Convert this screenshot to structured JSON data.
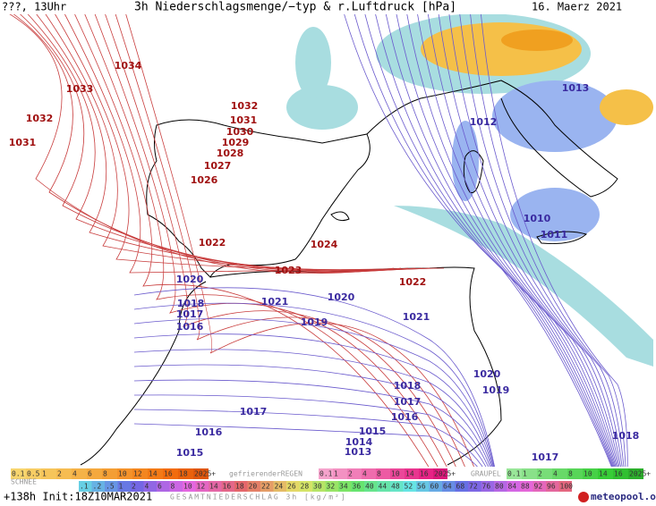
{
  "header": {
    "left": "???, 13Uhr",
    "title": "3h Niederschlagsmenge/−typ & r.Luftdruck [hPa]",
    "date": "16. Maerz 2021"
  },
  "isobar_labels": [
    "1034",
    "1033",
    "1032",
    "1031",
    "1032",
    "1031",
    "1030",
    "1029",
    "1028",
    "1027",
    "1026",
    "1022",
    "1024",
    "1023",
    "1022",
    "1020",
    "1021",
    "1020",
    "1018",
    "1017",
    "1016",
    "1019",
    "1021",
    "1012",
    "1013",
    "1010",
    "1011",
    "1020",
    "1019",
    "1018",
    "1017",
    "1016",
    "1017",
    "1016",
    "1015",
    "1014",
    "1013",
    "1015",
    "1017",
    "1018"
  ],
  "legend": {
    "snow_title": "SCHNEE",
    "snow": [
      "0.1",
      "0.5",
      "1",
      "2",
      "4",
      "6",
      "8",
      "10",
      "12",
      "14",
      "16",
      "18",
      "2025+"
    ],
    "frz_title": "gefrierenderREGEN",
    "frz": [
      "0.1",
      "1",
      "2",
      "4",
      "8",
      "10",
      "14",
      "16",
      "2025+"
    ],
    "graupel_title": "GRAUPEL",
    "graupel": [
      "0.1",
      "1",
      "2",
      "4",
      "8",
      "10",
      "14",
      "16",
      "2025+"
    ],
    "total": [
      ".1",
      ".2",
      ".5",
      "1",
      "2",
      "4",
      "6",
      "8",
      "10",
      "12",
      "14",
      "16",
      "18",
      "20",
      "22",
      "24",
      "26",
      "28",
      "30",
      "32",
      "34",
      "36",
      "40",
      "44",
      "48",
      "52",
      "56",
      "60",
      "64",
      "68",
      "72",
      "76",
      "80",
      "84",
      "88",
      "92",
      "96",
      "100"
    ],
    "total_title": "GESAMTNIEDERSCHLAG 3h [kg/m²]"
  },
  "footer": {
    "run": "+138h Init:18Z10MAR2021",
    "brand": "meteopool.org"
  }
}
